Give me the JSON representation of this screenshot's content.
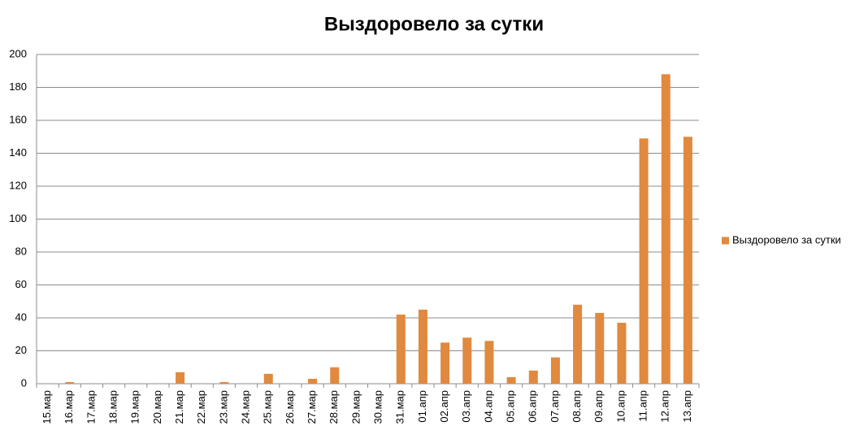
{
  "chart_data": {
    "type": "bar",
    "title": "Выздоровело за сутки",
    "categories": [
      "15.мар",
      "16.мар",
      "17.мар",
      "18.мар",
      "19.мар",
      "20.мар",
      "21.мар",
      "22.мар",
      "23.мар",
      "24.мар",
      "25.мар",
      "26.мар",
      "27.мар",
      "28.мар",
      "29.мар",
      "30.мар",
      "31.мар",
      "01.апр",
      "02.апр",
      "03.апр",
      "04.апр",
      "05.апр",
      "06.апр",
      "07.апр",
      "08.апр",
      "09.апр",
      "10.апр",
      "11.апр",
      "12.апр",
      "13.апр"
    ],
    "series": [
      {
        "name": "Выздоровело за сутки",
        "color": "#e0893f",
        "values": [
          0,
          1,
          0,
          0,
          0,
          0,
          7,
          0,
          1,
          0,
          6,
          0,
          3,
          10,
          0,
          0,
          42,
          45,
          25,
          28,
          26,
          4,
          8,
          16,
          48,
          43,
          37,
          149,
          188,
          150
        ]
      }
    ],
    "ylim": [
      0,
      200
    ],
    "yticks": [
      0,
      20,
      40,
      60,
      80,
      100,
      120,
      140,
      160,
      180,
      200
    ],
    "grid": true,
    "legend": "right"
  }
}
